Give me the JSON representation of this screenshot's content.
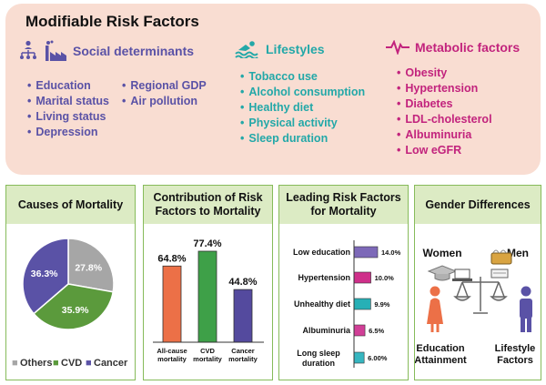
{
  "header": {
    "title": "Modifiable Risk Factors"
  },
  "social": {
    "title": "Social determinants",
    "col1": [
      "Education",
      "Marital status",
      "Living status",
      "Depression"
    ],
    "col2": [
      "Regional GDP",
      "Air pollution"
    ]
  },
  "lifestyles": {
    "title": "Lifestyles",
    "items": [
      "Tobacco use",
      "Alcohol consumption",
      "Healthy diet",
      "Physical activity",
      "Sleep duration"
    ]
  },
  "metabolic": {
    "title": "Metabolic factors",
    "items": [
      "Obesity",
      "Hypertension",
      "Diabetes",
      "LDL-cholesterol",
      "Albuminuria",
      "Low eGFR"
    ]
  },
  "panels": {
    "causes": {
      "title": "Causes of Mortality"
    },
    "contribution": {
      "title": "Contribution of Risk Factors to Mortality"
    },
    "leading": {
      "title": "Leading Risk Factors for Mortality"
    },
    "gender": {
      "title": "Gender Differences",
      "women": "Women",
      "men": "Men",
      "women_label": "Education Attainment",
      "men_label": "Lifestyle Factors"
    }
  },
  "colors": {
    "others": "#a6a6a6",
    "cvd": "#5b9a3c",
    "cancer": "#5a52a6",
    "allcause": "#ec7047",
    "cvdbar": "#3ea048",
    "cancerbar": "#544a9e",
    "edu": "#7d69b8",
    "hyp": "#cf2f8a",
    "diet": "#27b0b6",
    "alb": "#d13f97",
    "sleep": "#36b6c0",
    "women": "#ec7047",
    "men": "#5a52a6"
  },
  "chart_data": [
    {
      "type": "pie",
      "labels": [
        "Others",
        "CVD",
        "Cancer"
      ],
      "values": [
        27.8,
        35.9,
        36.3
      ],
      "value_labels": [
        "27.8%",
        "35.9%",
        "36.3%"
      ],
      "legend": "bottom"
    },
    {
      "type": "bar",
      "categories": [
        "All-cause mortality",
        "CVD mortality",
        "Cancer mortality"
      ],
      "values": [
        64.8,
        77.4,
        44.8
      ],
      "value_labels": [
        "64.8%",
        "77.4%",
        "44.8%"
      ]
    },
    {
      "type": "bar",
      "orientation": "horizontal",
      "categories": [
        "Low education",
        "Hypertension",
        "Unhealthy diet",
        "Albuminuria",
        "Long sleep duration"
      ],
      "values": [
        14.0,
        10.0,
        9.9,
        6.5,
        6.0
      ],
      "value_labels": [
        "14.0%",
        "10.0%",
        "9.9%",
        "6.5%",
        "6.00%"
      ]
    }
  ]
}
